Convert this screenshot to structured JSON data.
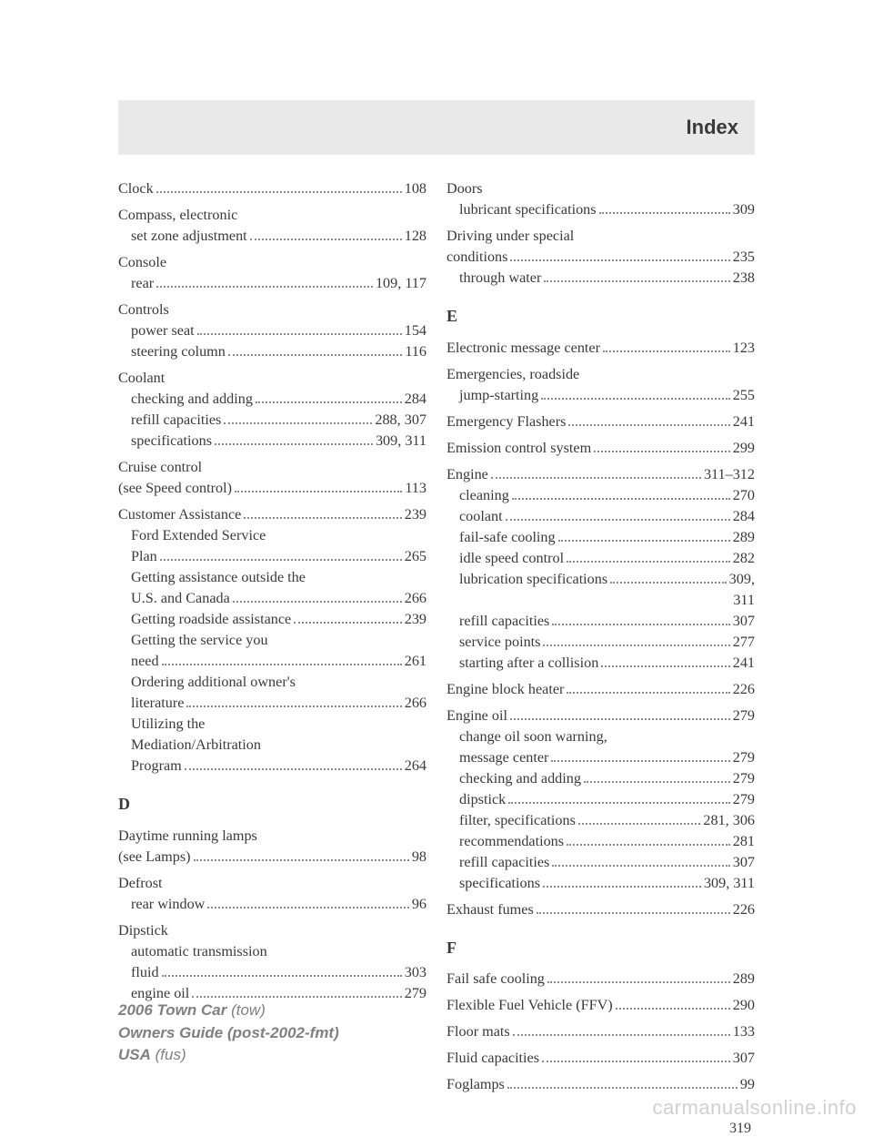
{
  "header": {
    "title": "Index"
  },
  "page_number": "319",
  "watermark": "carmanualsonline.info",
  "footer": {
    "line1_bold": "2006 Town Car",
    "line1_rest": " (tow)",
    "line2_bold": "Owners Guide (post-2002-fmt)",
    "line3_bold": "USA",
    "line3_rest": " (fus)"
  },
  "left": [
    {
      "t": "main",
      "label": "Clock",
      "page": "108"
    },
    {
      "t": "head",
      "label": "Compass, electronic"
    },
    {
      "t": "sub",
      "label": "set zone adjustment",
      "page": "128"
    },
    {
      "t": "head",
      "label": "Console"
    },
    {
      "t": "sub",
      "label": "rear",
      "page": "109, 117"
    },
    {
      "t": "head",
      "label": "Controls"
    },
    {
      "t": "sub",
      "label": "power seat",
      "page": "154"
    },
    {
      "t": "sub",
      "label": "steering column",
      "page": "116"
    },
    {
      "t": "head",
      "label": "Coolant"
    },
    {
      "t": "sub",
      "label": "checking and adding",
      "page": "284"
    },
    {
      "t": "sub",
      "label": "refill capacities",
      "page": "288, 307"
    },
    {
      "t": "sub",
      "label": "specifications",
      "page": "309, 311"
    },
    {
      "t": "head",
      "label": "Cruise control"
    },
    {
      "t": "cont",
      "label": "(see Speed control)",
      "page": "113"
    },
    {
      "t": "main",
      "label": "Customer Assistance",
      "page": "239"
    },
    {
      "t": "subhead",
      "label": "Ford Extended Service"
    },
    {
      "t": "subcont",
      "label": "Plan",
      "page": "265"
    },
    {
      "t": "subhead",
      "label": "Getting assistance outside the"
    },
    {
      "t": "subcont",
      "label": "U.S. and Canada",
      "page": "266"
    },
    {
      "t": "sub",
      "label": "Getting roadside assistance",
      "page": "239"
    },
    {
      "t": "subhead",
      "label": "Getting the service you"
    },
    {
      "t": "subcont",
      "label": "need",
      "page": "261"
    },
    {
      "t": "subhead",
      "label": "Ordering additional owner's"
    },
    {
      "t": "subcont",
      "label": "literature",
      "page": "266"
    },
    {
      "t": "subhead",
      "label": "Utilizing the"
    },
    {
      "t": "subhead",
      "label": "Mediation/Arbitration"
    },
    {
      "t": "subcont",
      "label": "Program",
      "page": "264"
    },
    {
      "t": "letter",
      "label": "D"
    },
    {
      "t": "head",
      "label": "Daytime running lamps"
    },
    {
      "t": "cont",
      "label": "(see Lamps)",
      "page": "98"
    },
    {
      "t": "head",
      "label": "Defrost"
    },
    {
      "t": "sub",
      "label": "rear window",
      "page": "96"
    },
    {
      "t": "head",
      "label": "Dipstick"
    },
    {
      "t": "subhead",
      "label": "automatic transmission"
    },
    {
      "t": "subcont",
      "label": "fluid",
      "page": "303"
    },
    {
      "t": "sub",
      "label": "engine oil",
      "page": "279"
    }
  ],
  "right": [
    {
      "t": "head",
      "label": "Doors"
    },
    {
      "t": "sub",
      "label": "lubricant specifications",
      "page": "309"
    },
    {
      "t": "head",
      "label": "Driving under special"
    },
    {
      "t": "cont",
      "label": "conditions",
      "page": "235"
    },
    {
      "t": "sub",
      "label": "through water",
      "page": "238"
    },
    {
      "t": "letter",
      "label": "E"
    },
    {
      "t": "main",
      "label": "Electronic message center",
      "page": "123"
    },
    {
      "t": "head",
      "label": "Emergencies, roadside"
    },
    {
      "t": "sub",
      "label": "jump-starting",
      "page": "255"
    },
    {
      "t": "main",
      "label": "Emergency Flashers",
      "page": "241"
    },
    {
      "t": "main",
      "label": "Emission control system",
      "page": "299"
    },
    {
      "t": "main",
      "label": "Engine",
      "page": "311–312"
    },
    {
      "t": "sub",
      "label": "cleaning",
      "page": "270"
    },
    {
      "t": "sub",
      "label": "coolant",
      "page": "284"
    },
    {
      "t": "sub",
      "label": "fail-safe cooling",
      "page": "289"
    },
    {
      "t": "sub",
      "label": "idle speed control",
      "page": "282"
    },
    {
      "t": "sub",
      "label": "lubrication specifications",
      "page": "309,"
    },
    {
      "t": "pgright",
      "page": "311"
    },
    {
      "t": "sub",
      "label": "refill capacities",
      "page": "307"
    },
    {
      "t": "sub",
      "label": "service points",
      "page": "277"
    },
    {
      "t": "sub",
      "label": "starting after a collision",
      "page": "241"
    },
    {
      "t": "main",
      "label": "Engine block heater",
      "page": "226"
    },
    {
      "t": "main",
      "label": "Engine oil",
      "page": "279"
    },
    {
      "t": "subhead",
      "label": "change oil soon warning,"
    },
    {
      "t": "subcont",
      "label": "message center",
      "page": "279"
    },
    {
      "t": "sub",
      "label": "checking and adding",
      "page": "279"
    },
    {
      "t": "sub",
      "label": "dipstick",
      "page": "279"
    },
    {
      "t": "sub",
      "label": "filter, specifications",
      "page": "281, 306"
    },
    {
      "t": "sub",
      "label": "recommendations",
      "page": "281"
    },
    {
      "t": "sub",
      "label": "refill capacities",
      "page": "307"
    },
    {
      "t": "sub",
      "label": "specifications",
      "page": "309, 311"
    },
    {
      "t": "main",
      "label": "Exhaust fumes",
      "page": "226"
    },
    {
      "t": "letter",
      "label": "F"
    },
    {
      "t": "main",
      "label": "Fail safe cooling",
      "page": "289"
    },
    {
      "t": "main",
      "label": "Flexible Fuel Vehicle (FFV)",
      "page": "290"
    },
    {
      "t": "main",
      "label": "Floor mats",
      "page": "133"
    },
    {
      "t": "main",
      "label": "Fluid capacities",
      "page": "307"
    },
    {
      "t": "main",
      "label": "Foglamps",
      "page": "99"
    }
  ]
}
